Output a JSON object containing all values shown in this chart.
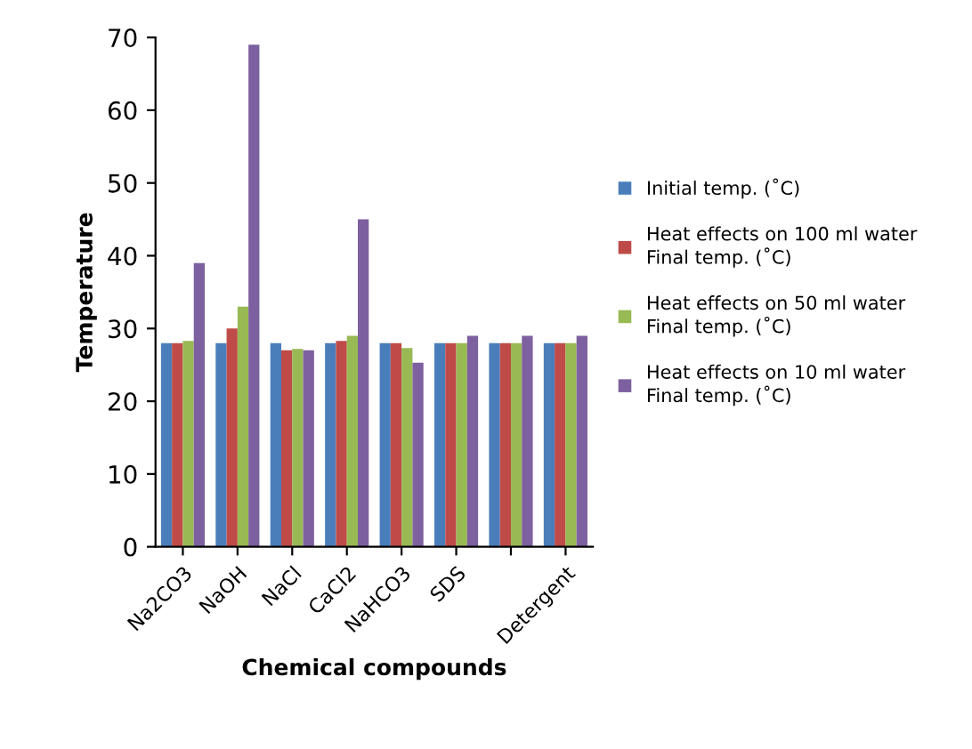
{
  "chart_data": {
    "type": "bar",
    "xlabel": "Chemical compounds",
    "ylabel": "Temperature",
    "categories": [
      "Na2CO3",
      "NaOH",
      "NaCl",
      "CaCl2",
      "NaHCO3",
      "SDS",
      null,
      "Detergent"
    ],
    "series": [
      {
        "name": "Initial temp. (˚C)",
        "color": "#4a7ebb",
        "values": [
          28,
          28,
          28,
          28,
          28,
          28,
          28,
          28
        ]
      },
      {
        "name": "Heat effects on 100 ml water\nFinal temp. (˚C)",
        "color": "#be4b48",
        "values": [
          28,
          30,
          27,
          28.3,
          28,
          28,
          28,
          28
        ]
      },
      {
        "name": "Heat effects on 50 ml water\nFinal temp. (˚C)",
        "color": "#98b954",
        "values": [
          28.3,
          33,
          27.2,
          29,
          27.3,
          28,
          28,
          28
        ]
      },
      {
        "name": "Heat effects on 10 ml water\nFinal temp. (˚C)",
        "color": "#7d60a0",
        "values": [
          39,
          69,
          27,
          45,
          25.3,
          29,
          29,
          29
        ]
      }
    ],
    "ylim": [
      0,
      70
    ],
    "yticks": [
      0,
      10,
      20,
      30,
      40,
      50,
      60,
      70
    ],
    "grid": false,
    "legend": "right"
  }
}
